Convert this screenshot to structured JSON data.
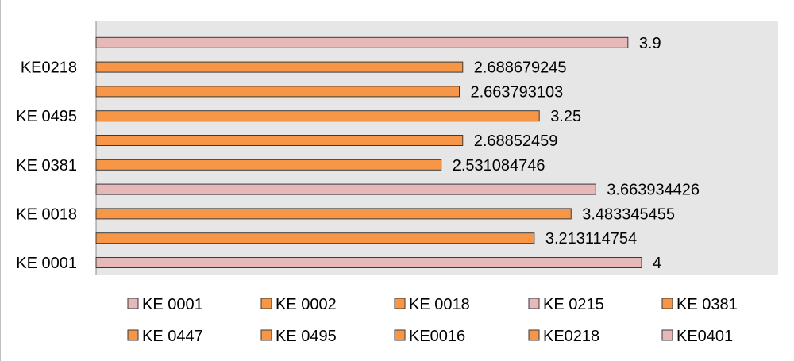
{
  "chart_data": {
    "type": "bar",
    "orientation": "horizontal",
    "title": "",
    "xlabel": "",
    "ylabel": "",
    "xlim": [
      0,
      4.0
    ],
    "grid": false,
    "legend_position": "bottom",
    "plot_background": "#e6e6e6",
    "colors": {
      "orange": "#f79646",
      "pink": "#e6b9b8",
      "bar_stroke": "#3a3a3a"
    },
    "categories": [
      "KE 0001",
      "KE 0002",
      "KE 0018",
      "KE 0215",
      "KE 0381",
      "KE 0447",
      "KE 0495",
      "KE0016",
      "KE0218",
      "KE0401"
    ],
    "bar_colors": [
      "pink",
      "orange",
      "orange",
      "pink",
      "orange",
      "orange",
      "orange",
      "orange",
      "orange",
      "pink"
    ],
    "values": [
      4,
      3.213114754,
      3.483345455,
      3.663934426,
      2.531084746,
      2.68852459,
      3.25,
      2.663793103,
      2.688679245,
      3.9
    ],
    "value_labels": [
      "4",
      "3.213114754",
      "3.483345455",
      "3.663934426",
      "2.531084746",
      "2.68852459",
      "3.25",
      "2.663793103",
      "2.688679245",
      "3.9"
    ],
    "tick_labels": [
      "KE 0001",
      "",
      "KE 0018",
      "",
      "KE 0381",
      "",
      "KE 0495",
      "",
      "KE0218",
      ""
    ],
    "legend": [
      {
        "label": "KE 0001",
        "color": "pink"
      },
      {
        "label": "KE 0002",
        "color": "orange"
      },
      {
        "label": "KE 0018",
        "color": "orange"
      },
      {
        "label": "KE 0215",
        "color": "pink"
      },
      {
        "label": "KE 0381",
        "color": "orange"
      },
      {
        "label": "KE 0447",
        "color": "orange"
      },
      {
        "label": "KE 0495",
        "color": "orange"
      },
      {
        "label": "KE0016",
        "color": "orange"
      },
      {
        "label": "KE0218",
        "color": "orange"
      },
      {
        "label": "KE0401",
        "color": "pink"
      }
    ]
  }
}
